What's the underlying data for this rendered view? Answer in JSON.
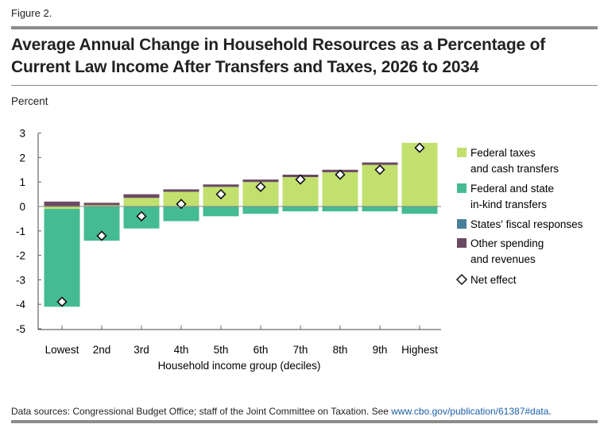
{
  "figure_label": "Figure 2.",
  "chart_data": {
    "type": "bar",
    "stacked": true,
    "title": "Average Annual Change in Household Resources as a Percentage of Current Law Income After Transfers and Taxes, 2026 to 2034",
    "ylabel": "Percent",
    "xlabel": "Household income group (deciles)",
    "ylim": [
      -5,
      3
    ],
    "yticks": [
      3,
      2,
      1,
      0,
      -1,
      -2,
      -3,
      -4,
      -5
    ],
    "grid": false,
    "legend_position": "right",
    "categories": [
      "Lowest",
      "2nd",
      "3rd",
      "4th",
      "5th",
      "6th",
      "7th",
      "8th",
      "9th",
      "Highest"
    ],
    "series": [
      {
        "name": "Federal taxes and cash transfers",
        "name_lines": [
          "Federal taxes",
          "and cash transfers"
        ],
        "color": "#c2e06e",
        "values": [
          -0.1,
          0.05,
          0.35,
          0.6,
          0.8,
          1.0,
          1.2,
          1.4,
          1.7,
          2.6
        ]
      },
      {
        "name": "Federal and state in-kind transfers",
        "name_lines": [
          "Federal and state",
          "in-kind transfers"
        ],
        "color": "#45bb94",
        "values": [
          -4.0,
          -1.4,
          -0.9,
          -0.6,
          -0.4,
          -0.3,
          -0.2,
          -0.2,
          -0.2,
          -0.3
        ]
      },
      {
        "name": "States' fiscal responses",
        "name_lines": [
          "States' fiscal responses"
        ],
        "color": "#4a7f9a",
        "values": [
          0,
          0,
          0,
          0,
          0,
          0,
          0,
          0,
          0,
          0
        ]
      },
      {
        "name": "Other spending and revenues",
        "name_lines": [
          "Other spending",
          "and revenues"
        ],
        "color": "#6b4a63",
        "values": [
          0.2,
          0.1,
          0.15,
          0.1,
          0.1,
          0.1,
          0.1,
          0.1,
          0.1,
          0.0
        ]
      }
    ],
    "net_effect": {
      "name": "Net effect",
      "values": [
        -3.9,
        -1.2,
        -0.4,
        0.1,
        0.5,
        0.8,
        1.1,
        1.3,
        1.5,
        2.4
      ]
    }
  },
  "source": {
    "text": "Data sources: Congressional Budget Office; staff of the Joint Committee on Taxation. See ",
    "link": "www.cbo.gov/publication/61387#data",
    "end": "."
  }
}
